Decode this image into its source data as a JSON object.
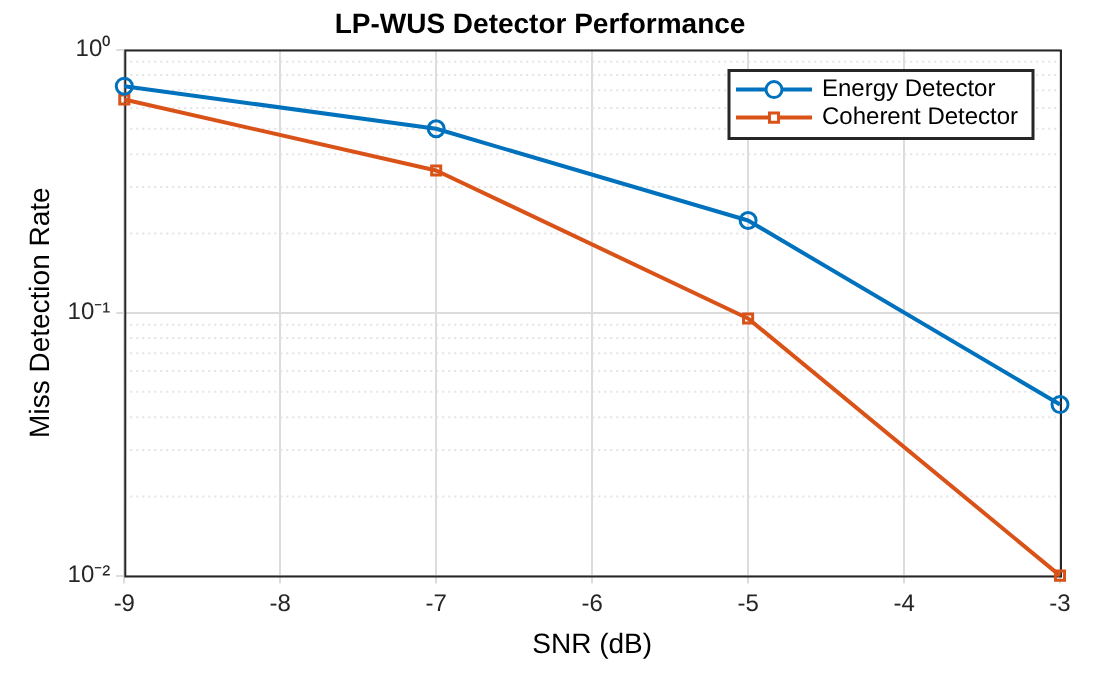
{
  "chart_data": {
    "type": "line",
    "title": "LP-WUS Detector Performance",
    "xlabel": "SNR (dB)",
    "ylabel": "Miss Detection Rate",
    "x": [
      -9,
      -7,
      -5,
      -3
    ],
    "series": [
      {
        "name": "Energy Detector",
        "color": "#0072bd",
        "marker": "circle",
        "values": [
          0.726,
          0.5,
          0.224,
          0.0447
        ]
      },
      {
        "name": "Coherent Detector",
        "color": "#d95319",
        "marker": "square",
        "values": [
          0.646,
          0.347,
          0.095,
          0.01
        ]
      }
    ],
    "xlim": [
      -9,
      -3
    ],
    "xticks": [
      -9,
      -8,
      -7,
      -6,
      -5,
      -4,
      -3
    ],
    "ylim": [
      0.01,
      1
    ],
    "yticks": [
      {
        "value": 0.01,
        "label": "10⁻²"
      },
      {
        "value": 0.1,
        "label": "10⁻¹"
      },
      {
        "value": 1,
        "label": "10⁰"
      }
    ],
    "log": "y",
    "grid": true,
    "legend": "top right",
    "line_style": "solid"
  }
}
